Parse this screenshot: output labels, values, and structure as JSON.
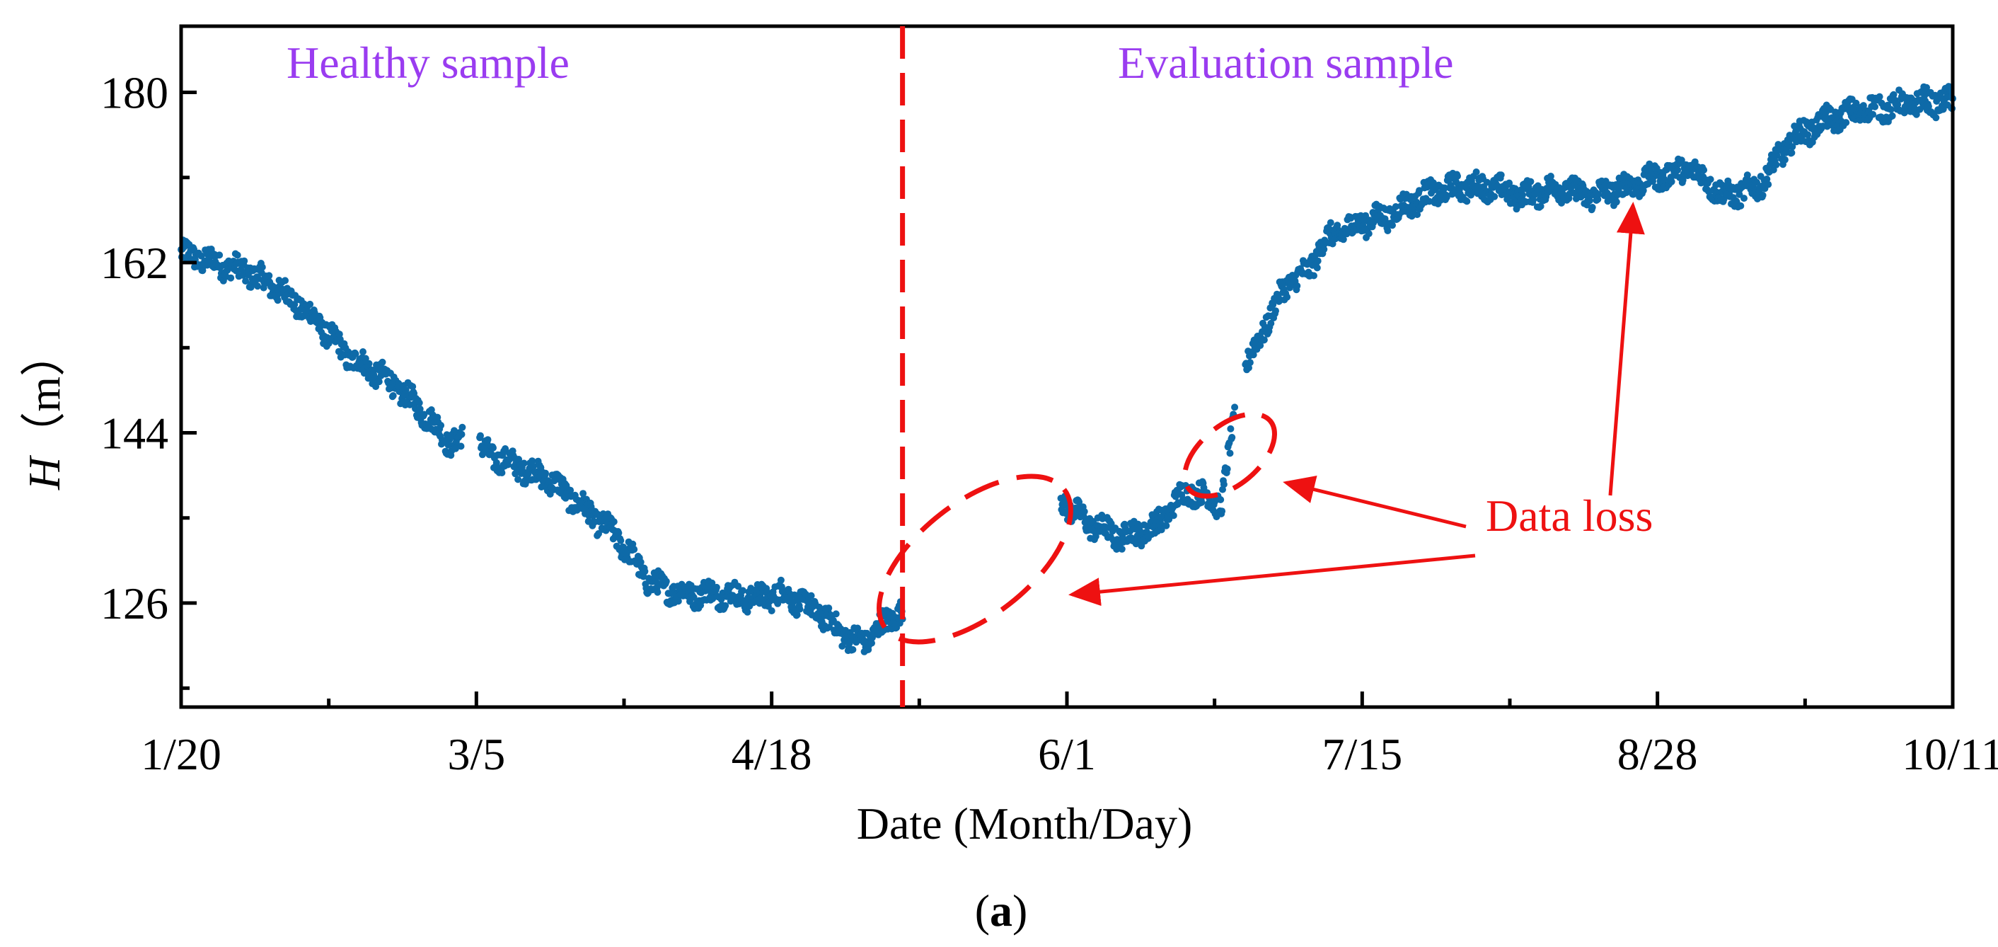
{
  "chart_data": {
    "type": "scatter",
    "title": "",
    "xlabel": "Date (Month/Day)",
    "ylabel_italic": "H",
    "ylabel_unit": "（m）",
    "x_tick_labels": [
      "1/20",
      "3/5",
      "4/18",
      "6/1",
      "7/15",
      "8/28",
      "10/11"
    ],
    "x_tick_days": [
      0,
      44,
      88,
      132,
      176,
      220,
      264
    ],
    "xlim_days": [
      0,
      264
    ],
    "y_ticks": [
      126,
      144,
      162,
      180
    ],
    "ylim": [
      115,
      187
    ],
    "grid": false,
    "point_color": "#0e6aa8",
    "accent_color": "#ee1111",
    "label_color": "#9a3cf0",
    "split_day": 107.5,
    "regions": {
      "left": "Healthy sample",
      "right": "Evaluation sample"
    },
    "annotation": {
      "text": "Data loss"
    },
    "caption": {
      "letter": "a",
      "open": "(",
      "close": ")"
    },
    "series": [
      {
        "name": "H",
        "trend_days": [
          0,
          5,
          10,
          15,
          20,
          25,
          30,
          35,
          40,
          44,
          45,
          50,
          55,
          60,
          65,
          70,
          75,
          80,
          85,
          90,
          95,
          100,
          102,
          105,
          107,
          131,
          135,
          140,
          145,
          150,
          155,
          158,
          160,
          162,
          165,
          168,
          170,
          172,
          175,
          180,
          185,
          190,
          195,
          200,
          205,
          210,
          215,
          220,
          225,
          230,
          235,
          240,
          245,
          250,
          255,
          260,
          264
        ],
        "trend_values": [
          163,
          162,
          161,
          159,
          156,
          152,
          150,
          147,
          143,
          143.5,
          142,
          140.5,
          139,
          136,
          133,
          128,
          127,
          127,
          126.5,
          127,
          125,
          122,
          122,
          124,
          125,
          137,
          134.5,
          133,
          134,
          138,
          136.5,
          150,
          153,
          156,
          160,
          161,
          164,
          165,
          166,
          167,
          169,
          170,
          170,
          169,
          170,
          169,
          170,
          171,
          172,
          169,
          170,
          175,
          177,
          178,
          178.5,
          179,
          179
        ],
        "noise": 1.2,
        "gaps": [
          [
            42,
            44.5
          ],
          [
            107.5,
            131
          ],
          [
            157,
            158.5
          ]
        ]
      }
    ]
  }
}
